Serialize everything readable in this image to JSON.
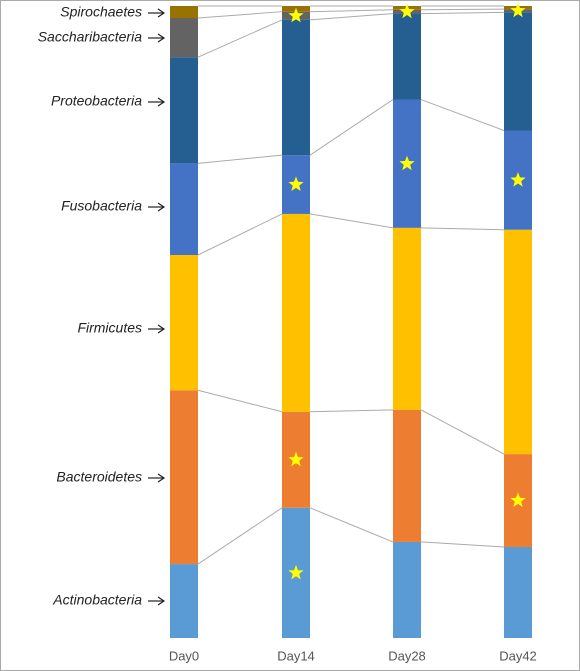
{
  "chart_data": {
    "type": "stacked-bar",
    "categories": [
      "Day0",
      "Day14",
      "Day28",
      "Day42"
    ],
    "series": [
      {
        "name": "Actinobacteria",
        "color": "#5b9bd5",
        "values": [
          11.7,
          20.6,
          15.2,
          14.4
        ],
        "starred": [
          false,
          true,
          false,
          false
        ]
      },
      {
        "name": "Bacteroidetes",
        "color": "#ed7d31",
        "values": [
          27.5,
          15.2,
          20.9,
          14.7
        ],
        "starred": [
          false,
          true,
          false,
          true
        ]
      },
      {
        "name": "Firmicutes",
        "color": "#ffc000",
        "values": [
          21.4,
          31.3,
          28.8,
          35.5
        ],
        "starred": [
          false,
          false,
          false,
          false
        ]
      },
      {
        "name": "Fusobacteria",
        "color": "#4472c4",
        "values": [
          14.5,
          9.3,
          20.3,
          15.7
        ],
        "starred": [
          false,
          true,
          true,
          true
        ]
      },
      {
        "name": "Proteobacteria",
        "color": "#255e91",
        "values": [
          16.8,
          21.4,
          13.6,
          18.7
        ],
        "starred": [
          false,
          false,
          false,
          false
        ]
      },
      {
        "name": "Saccharibacteria",
        "color": "#636363",
        "values": [
          6.2,
          1.3,
          0.6,
          0.5
        ],
        "starred": [
          false,
          true,
          true,
          true
        ]
      },
      {
        "name": "Spirochaetes",
        "color": "#997300",
        "values": [
          1.9,
          0.9,
          0.6,
          0.5
        ],
        "starred": [
          false,
          false,
          false,
          false
        ]
      }
    ],
    "star_color": "#ffff00"
  }
}
